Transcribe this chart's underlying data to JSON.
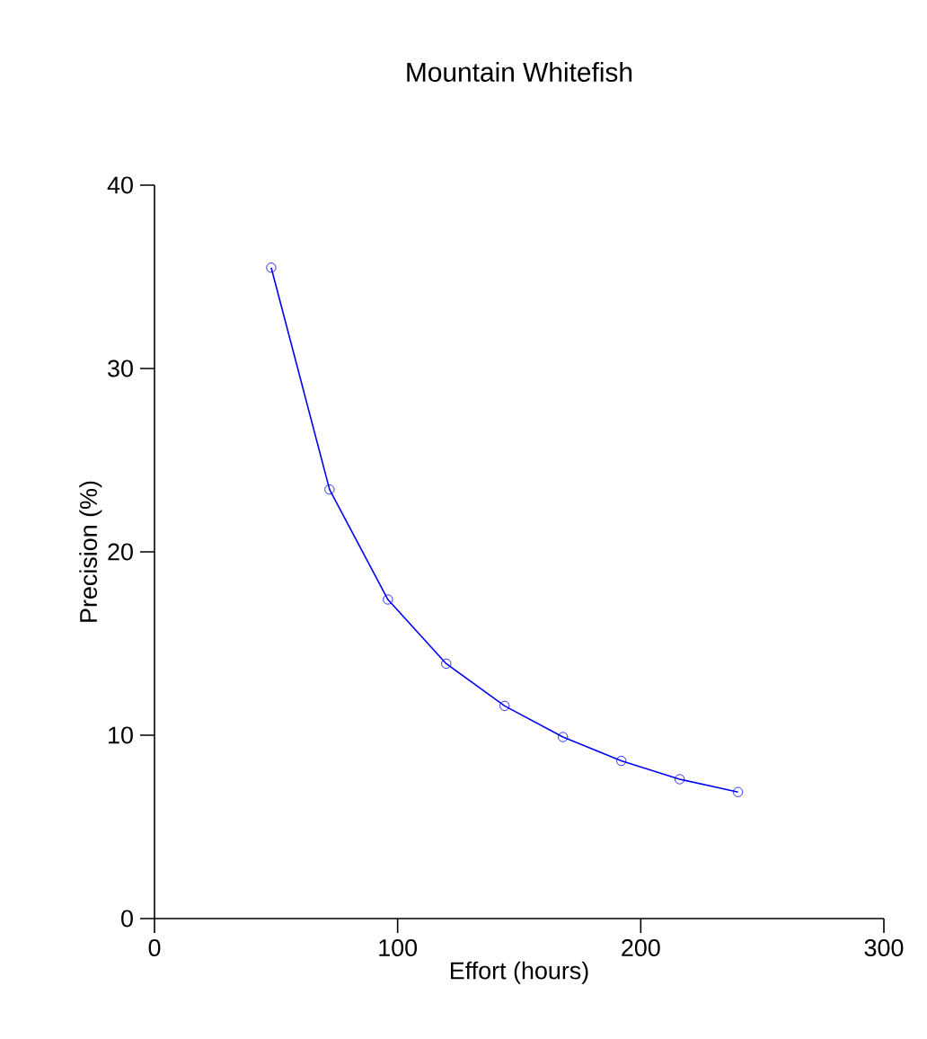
{
  "chart_data": {
    "type": "line",
    "title": "Mountain Whitefish",
    "xlabel": "Effort (hours)",
    "ylabel": "Precision (%)",
    "x": [
      48,
      72,
      96,
      120,
      144,
      168,
      192,
      216,
      240
    ],
    "values": [
      35.5,
      23.4,
      17.4,
      13.9,
      11.6,
      9.9,
      8.6,
      7.6,
      6.9
    ],
    "color": "#0000ee",
    "marker": "circle",
    "line_style": "solid",
    "xlim": [
      0,
      300
    ],
    "ylim": [
      0,
      40
    ],
    "xticks": [
      0,
      100,
      200,
      300
    ],
    "yticks": [
      0,
      10,
      20,
      30,
      40
    ]
  }
}
